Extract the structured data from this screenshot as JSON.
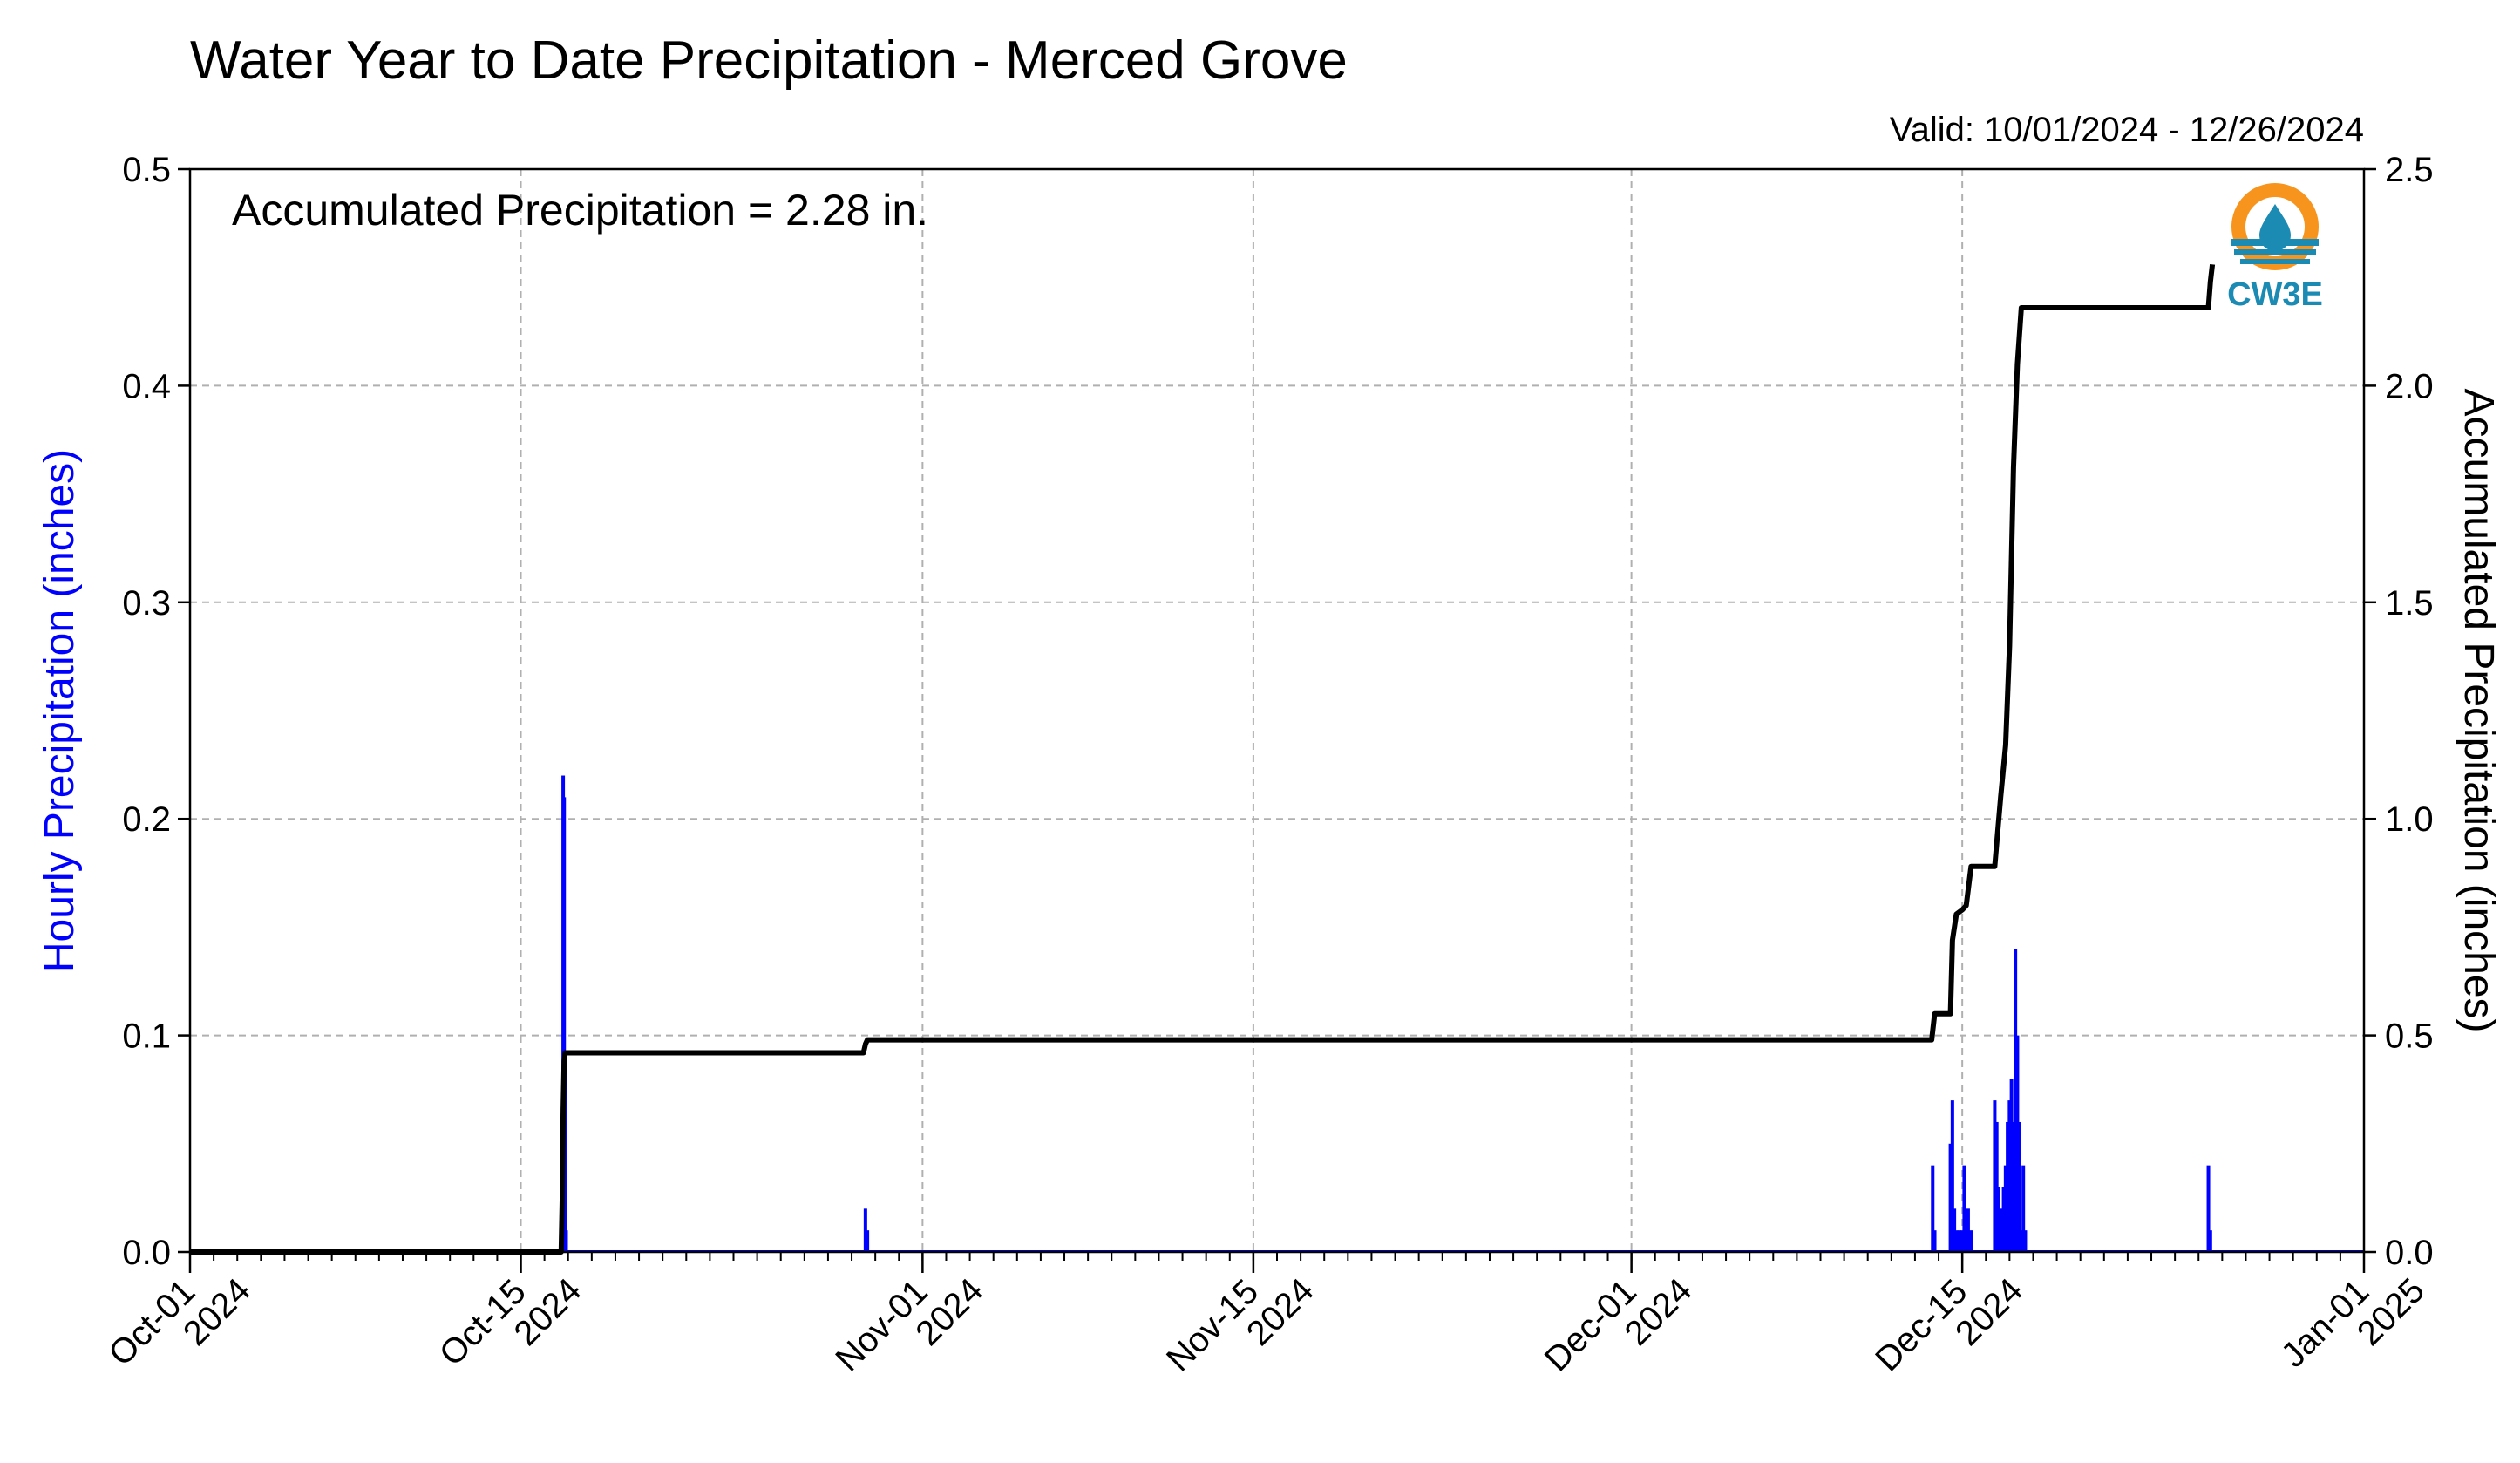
{
  "chart_data": {
    "type": "bar+line",
    "title": "Water Year to Date Precipitation - Merced Grove",
    "valid_text": "Valid: 10/01/2024 - 12/26/2024",
    "annotation": "Accumulated Precipitation = 2.28 in.",
    "ylabel_left": "Hourly Precipitation (inches)",
    "ylabel_right": "Accumulated Precipitation (inches)",
    "x_range": [
      "2024-10-01",
      "2025-01-01"
    ],
    "ylim_left": [
      0,
      0.5
    ],
    "ylim_right": [
      0,
      2.5
    ],
    "yticks_left": [
      "0.0",
      "0.1",
      "0.2",
      "0.3",
      "0.4",
      "0.5"
    ],
    "yticks_right": [
      "0.0",
      "0.5",
      "1.0",
      "1.5",
      "2.0",
      "2.5"
    ],
    "xticks": [
      {
        "date": "2024-10-01",
        "line1": "Oct-01",
        "line2": "2024"
      },
      {
        "date": "2024-10-15",
        "line1": "Oct-15",
        "line2": "2024"
      },
      {
        "date": "2024-11-01",
        "line1": "Nov-01",
        "line2": "2024"
      },
      {
        "date": "2024-11-15",
        "line1": "Nov-15",
        "line2": "2024"
      },
      {
        "date": "2024-12-01",
        "line1": "Dec-01",
        "line2": "2024"
      },
      {
        "date": "2024-12-15",
        "line1": "Dec-15",
        "line2": "2024"
      },
      {
        "date": "2025-01-01",
        "line1": "Jan-01",
        "line2": "2025"
      }
    ],
    "grid": true,
    "colors": {
      "hourly": "#0000ff",
      "accumulated": "#000000",
      "grid": "#b0b0b0"
    },
    "hourly_series": {
      "name": "Hourly Precipitation",
      "x": [
        "2024-10-16T18:00",
        "2024-10-16T19:00",
        "2024-10-16T20:00",
        "2024-10-16T21:00",
        "2024-10-16T22:00",
        "2024-10-29T14:00",
        "2024-10-29T16:00",
        "2024-12-13T18:00",
        "2024-12-13T20:00",
        "2024-12-14T12:00",
        "2024-12-14T14:00",
        "2024-12-14T16:00",
        "2024-12-14T18:00",
        "2024-12-14T21:00",
        "2024-12-15T00:00",
        "2024-12-15T02:00",
        "2024-12-15T04:00",
        "2024-12-15T06:00",
        "2024-12-15T09:00",
        "2024-12-16T09:00",
        "2024-12-16T11:00",
        "2024-12-16T13:00",
        "2024-12-16T15:00",
        "2024-12-16T18:00",
        "2024-12-16T20:00",
        "2024-12-16T22:00",
        "2024-12-17T00:00",
        "2024-12-17T02:00",
        "2024-12-17T04:00",
        "2024-12-17T06:00",
        "2024-12-17T08:00",
        "2024-12-17T10:00",
        "2024-12-17T12:00",
        "2024-12-17T14:00",
        "2024-12-17T16:00",
        "2024-12-25T10:00",
        "2024-12-25T12:00"
      ],
      "values": [
        0.02,
        0.22,
        0.21,
        0.09,
        0.01,
        0.02,
        0.01,
        0.04,
        0.01,
        0.05,
        0.07,
        0.02,
        0.01,
        0.01,
        0.01,
        0.04,
        0.01,
        0.02,
        0.01,
        0.07,
        0.06,
        0.03,
        0.02,
        0.03,
        0.04,
        0.06,
        0.07,
        0.08,
        0.06,
        0.14,
        0.1,
        0.06,
        0.01,
        0.04,
        0.01,
        0.04,
        0.01
      ]
    },
    "accumulated_series": {
      "name": "Accumulated Precipitation",
      "x": [
        "2024-10-01T00:00",
        "2024-10-16T17:00",
        "2024-10-16T18:00",
        "2024-10-16T19:00",
        "2024-10-16T20:00",
        "2024-10-16T21:00",
        "2024-10-29T12:00",
        "2024-10-29T14:00",
        "2024-10-29T16:00",
        "2024-12-13T17:00",
        "2024-12-13T20:00",
        "2024-12-14T12:00",
        "2024-12-14T14:00",
        "2024-12-14T18:00",
        "2024-12-15T00:00",
        "2024-12-15T04:00",
        "2024-12-15T09:00",
        "2024-12-16T09:00",
        "2024-12-16T15:00",
        "2024-12-16T20:00",
        "2024-12-17T00:00",
        "2024-12-17T04:00",
        "2024-12-17T08:00",
        "2024-12-17T12:00",
        "2024-12-17T16:00",
        "2024-12-25T10:00",
        "2024-12-25T12:00",
        "2024-12-25T14:00"
      ],
      "values": [
        0.0,
        0.0,
        0.12,
        0.33,
        0.44,
        0.46,
        0.46,
        0.48,
        0.49,
        0.49,
        0.55,
        0.55,
        0.72,
        0.78,
        0.79,
        0.8,
        0.89,
        0.89,
        1.05,
        1.17,
        1.4,
        1.81,
        2.05,
        2.18,
        2.18,
        2.18,
        2.24,
        2.28
      ]
    }
  }
}
